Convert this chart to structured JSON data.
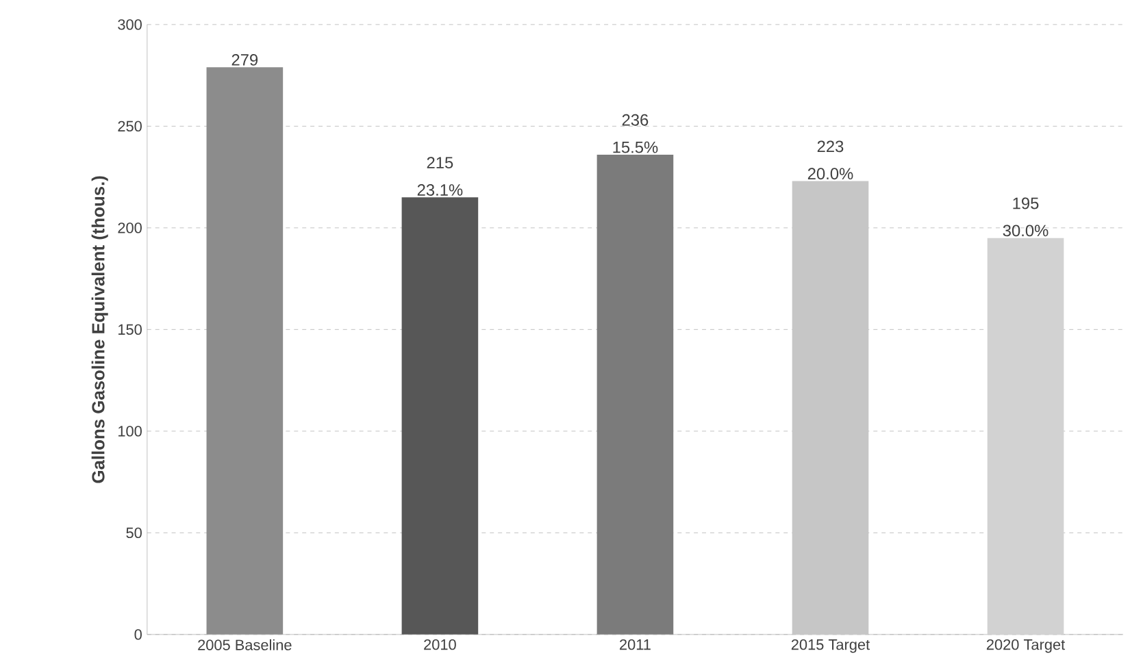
{
  "chart_data": {
    "type": "bar",
    "ylabel": "Gallons Gasoline Equivalent (thous.)",
    "categories": [
      "2005 Baseline",
      "2010",
      "2011",
      "2015 Target",
      "2020 Target"
    ],
    "values": [
      279,
      215,
      236,
      223,
      195
    ],
    "colors": [
      "#8c8c8c",
      "#575757",
      "#7b7b7b",
      "#c6c6c6",
      "#d2d2d2"
    ],
    "data_labels": true,
    "annotations": [
      {
        "text": "23.1%",
        "x": "2010",
        "y": 215
      },
      {
        "text": "15.5%",
        "x": "2011",
        "y": 236
      },
      {
        "text": "20.0%",
        "x": "2015 Target",
        "y": 223
      },
      {
        "text": "30.0%",
        "x": "2020 Target",
        "y": 195
      }
    ],
    "ylim": [
      0,
      300
    ],
    "yticks": [
      0,
      50,
      100,
      150,
      200,
      250,
      300
    ],
    "grid": "y"
  }
}
